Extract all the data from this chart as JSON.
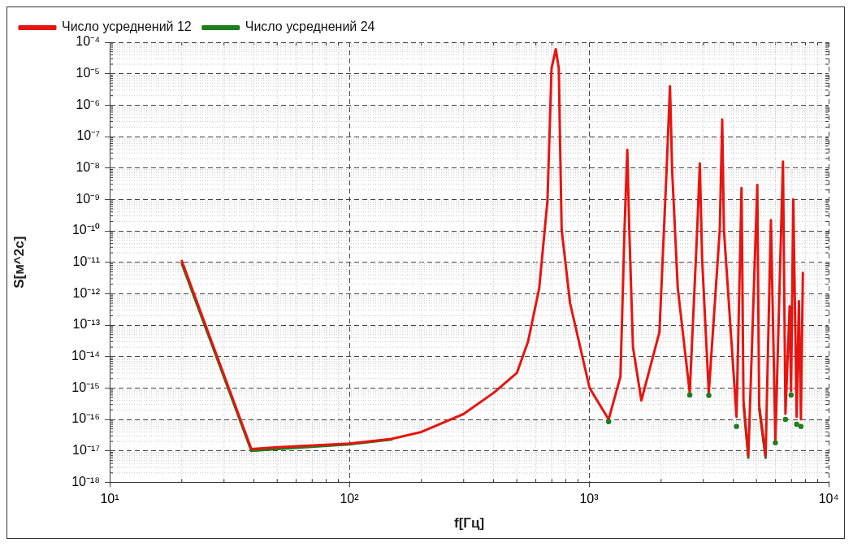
{
  "chart_data": {
    "type": "line",
    "xlabel": "f[Гц]",
    "ylabel": "S[м^2c]",
    "log": "xy",
    "grid": true,
    "legend": "top left",
    "line_style": "solid",
    "xlim": [
      10,
      10000
    ],
    "xticks": [
      {
        "value": 10,
        "label": "10¹"
      },
      {
        "value": 100,
        "label": "10²"
      },
      {
        "value": 1000,
        "label": "10³"
      },
      {
        "value": 10000,
        "label": "10⁴"
      }
    ],
    "ylim": [
      1e-18,
      0.0001
    ],
    "yticks": [
      {
        "value": 1e-18,
        "label": "10⁻¹⁸"
      },
      {
        "value": 1e-17,
        "label": "10⁻¹⁷"
      },
      {
        "value": 1e-16,
        "label": "10⁻¹⁶"
      },
      {
        "value": 1e-15,
        "label": "10⁻¹⁵"
      },
      {
        "value": 1e-14,
        "label": "10⁻¹⁴"
      },
      {
        "value": 1e-13,
        "label": "10⁻¹³"
      },
      {
        "value": 1e-12,
        "label": "10⁻¹²"
      },
      {
        "value": 1e-11,
        "label": "10⁻¹¹"
      },
      {
        "value": 1e-10,
        "label": "10⁻¹⁰"
      },
      {
        "value": 1e-09,
        "label": "10⁻⁹"
      },
      {
        "value": 1e-08,
        "label": "10⁻⁸"
      },
      {
        "value": 1e-07,
        "label": "10⁻⁷"
      },
      {
        "value": 1e-06,
        "label": "10⁻⁶"
      },
      {
        "value": 1e-05,
        "label": "10⁻⁵"
      },
      {
        "value": 0.0001,
        "label": "10⁻⁴"
      }
    ],
    "x": [
      20,
      39,
      50,
      100,
      150,
      200,
      300,
      400,
      500,
      557,
      620,
      671,
      698,
      727,
      748,
      769,
      834,
      1006,
      1208,
      1353,
      1407,
      1445,
      1473,
      1526,
      1654,
      1968,
      2107,
      2178,
      2224,
      2347,
      2633,
      2829,
      2901,
      2965,
      3162,
      3514,
      3597,
      3656,
      4127,
      4331,
      4413,
      4624,
      5039,
      5130,
      5459,
      5743,
      5996,
      6449,
      6604,
      6876,
      6972,
      7120,
      7355,
      7514,
      7663,
      7809
    ],
    "series": [
      {
        "name": "Число усреднений 12",
        "color": "#e8140f",
        "values": [
          1.1e-11,
          1.15e-17,
          1.3e-17,
          1.7e-17,
          2.4e-17,
          4e-17,
          1.5e-16,
          7e-16,
          3e-15,
          3e-14,
          1.5e-12,
          9e-10,
          1.5e-05,
          6e-05,
          1.5e-05,
          1.1e-10,
          5e-13,
          1e-15,
          1e-16,
          2.3e-15,
          1.1e-10,
          3.8e-08,
          1.1e-10,
          2e-14,
          4e-16,
          6e-14,
          8e-09,
          4e-06,
          8e-09,
          1.5e-12,
          7e-16,
          1.1e-10,
          1.4e-08,
          1.3e-11,
          7e-16,
          1.1e-10,
          3.5e-07,
          1.1e-10,
          1.2e-16,
          2.3e-09,
          4e-16,
          7e-18,
          2.9e-09,
          2.8e-16,
          7e-18,
          2.2e-10,
          2.1e-17,
          1.6e-08,
          1.5e-16,
          4e-13,
          8e-16,
          1e-09,
          1.2e-16,
          5.8e-13,
          1e-16,
          4.6e-12
        ]
      },
      {
        "name": "Число усреднений 24",
        "color": "#1e7d1e",
        "values": [
          9e-12,
          1e-17,
          1.15e-17,
          1.6e-17,
          2.3e-17,
          null,
          null,
          null,
          null,
          null,
          null,
          null,
          null,
          null,
          null,
          null,
          null,
          null,
          8.5e-17,
          null,
          null,
          null,
          null,
          null,
          null,
          null,
          null,
          null,
          null,
          null,
          6e-16,
          null,
          null,
          null,
          5.8e-16,
          null,
          null,
          null,
          6e-17,
          null,
          3e-16,
          6e-18,
          null,
          2.2e-16,
          6e-18,
          null,
          1.8e-17,
          null,
          1e-16,
          null,
          6e-16,
          null,
          7e-17,
          null,
          6e-17,
          null
        ]
      }
    ]
  }
}
